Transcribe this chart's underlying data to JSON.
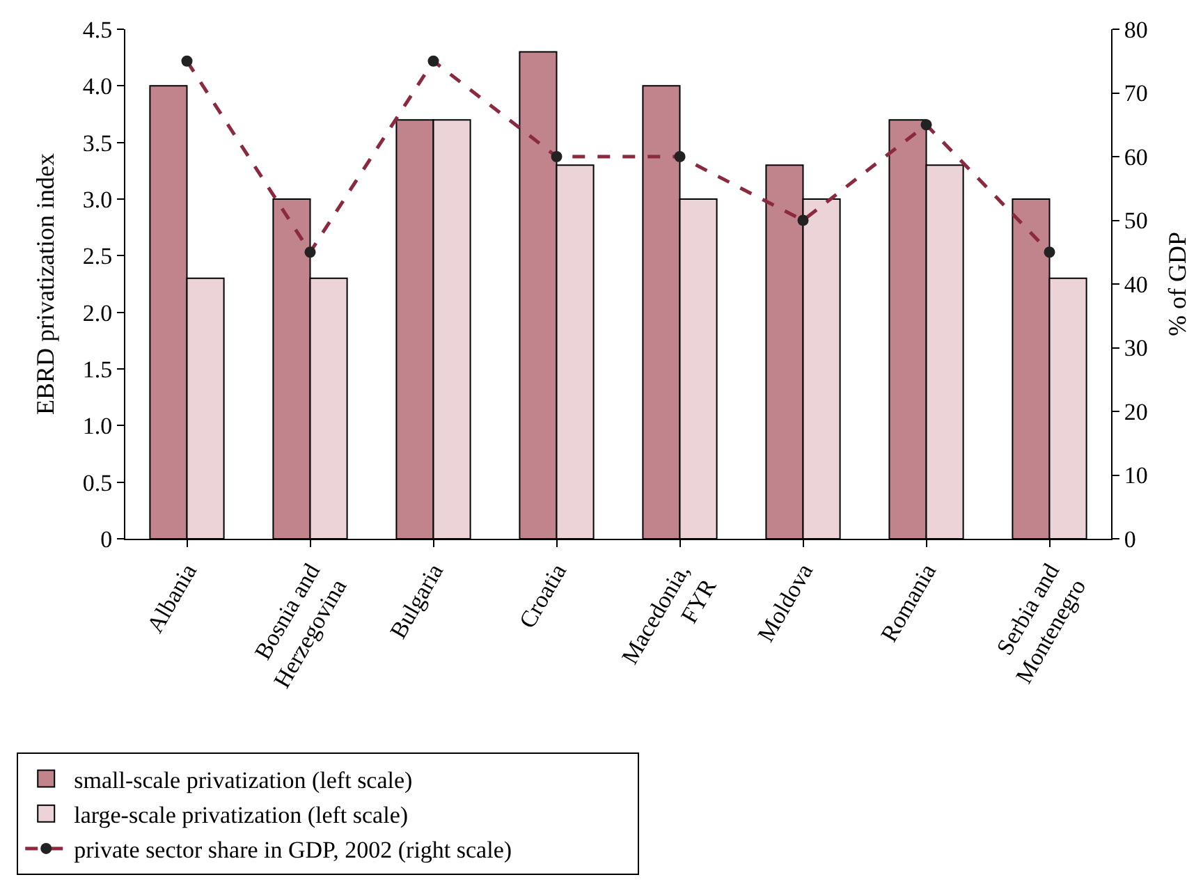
{
  "chart_data": {
    "type": "bar",
    "categories": [
      "Albania",
      "Bosnia and\nHerzegovina",
      "Bulgaria",
      "Croatia",
      "Macedonia,\nFYR",
      "Moldova",
      "Romania",
      "Serbia and\nMontenegro"
    ],
    "series": [
      {
        "name": "small-scale privatization (left scale)",
        "color": "#c1848c",
        "values": [
          4.0,
          3.0,
          3.7,
          4.3,
          4.0,
          3.3,
          3.7,
          3.0
        ]
      },
      {
        "name": "large-scale privatization (left scale)",
        "color": "#ecd3d7",
        "values": [
          2.3,
          2.3,
          3.7,
          3.3,
          3.0,
          3.0,
          3.3,
          2.3
        ]
      },
      {
        "name": "private sector share in GDP, 2002 (right scale)",
        "type": "line",
        "axis": "y2",
        "color": "#8b2a3f",
        "line_style": "dashed",
        "marker": "circle",
        "values": [
          75,
          45,
          75,
          60,
          60,
          50,
          65,
          45
        ]
      }
    ],
    "ylabel": "EBRD privatization index",
    "y2label": "% of GDP",
    "ylim": [
      0,
      4.5
    ],
    "yticks": [
      {
        "value": 0,
        "label": "0"
      },
      {
        "value": 0.5,
        "label": "0.5"
      },
      {
        "value": 1,
        "label": "1.0"
      },
      {
        "value": 1.5,
        "label": "1.5"
      },
      {
        "value": 2,
        "label": "2.0"
      },
      {
        "value": 2.5,
        "label": "2.5"
      },
      {
        "value": 3,
        "label": "3.0"
      },
      {
        "value": 3.5,
        "label": "3.5"
      },
      {
        "value": 4,
        "label": "4.0"
      },
      {
        "value": 4.5,
        "label": "4.5"
      }
    ],
    "y2lim": [
      0,
      80
    ],
    "y2ticks": [
      0,
      10,
      20,
      30,
      40,
      50,
      60,
      70,
      80
    ],
    "legend": "bottom"
  }
}
